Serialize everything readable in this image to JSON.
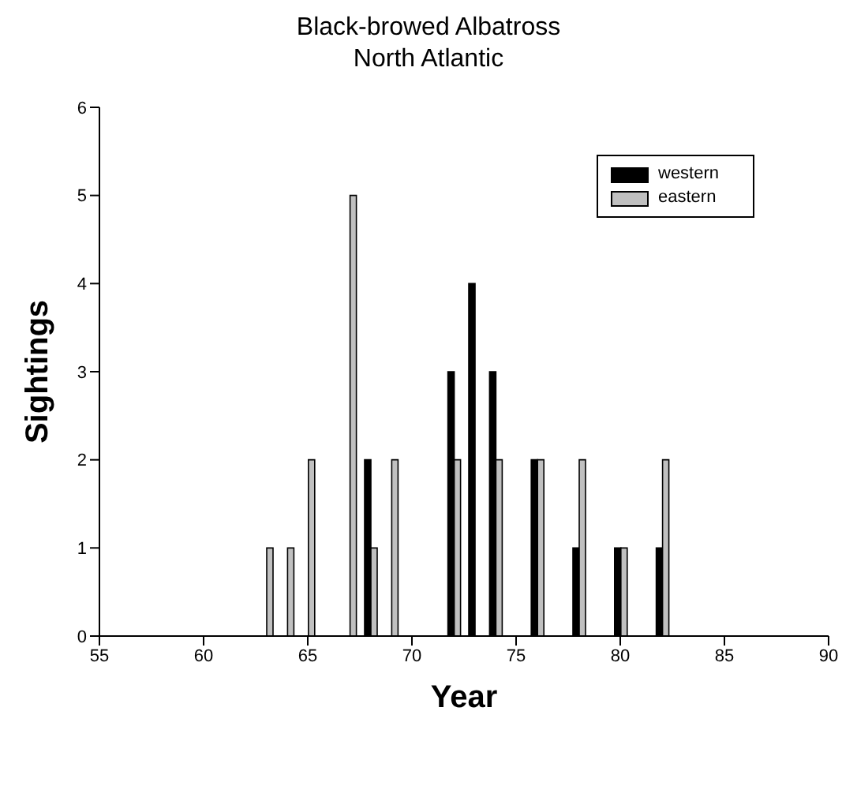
{
  "chart_data": {
    "type": "bar",
    "title": "Black-browed Albatross",
    "subtitle": "North Atlantic",
    "xlabel": "Year",
    "ylabel": "Sightings",
    "x": [
      63,
      64,
      65,
      67,
      68,
      69,
      72,
      73,
      74,
      76,
      78,
      80,
      82
    ],
    "series": [
      {
        "name": "western",
        "color": "#000000",
        "values": [
          null,
          null,
          null,
          null,
          2,
          null,
          3,
          4,
          3,
          2,
          1,
          1,
          1
        ]
      },
      {
        "name": "eastern",
        "color": "#c0c0c0",
        "values": [
          1,
          1,
          2,
          5,
          1,
          2,
          2,
          null,
          2,
          2,
          2,
          1,
          2
        ]
      }
    ],
    "xlim": [
      55,
      90
    ],
    "xticks": [
      55,
      60,
      65,
      70,
      75,
      80,
      85,
      90
    ],
    "ylim": [
      0,
      6
    ],
    "yticks": [
      0,
      1,
      2,
      3,
      4,
      5,
      6
    ],
    "legend": "top right"
  }
}
